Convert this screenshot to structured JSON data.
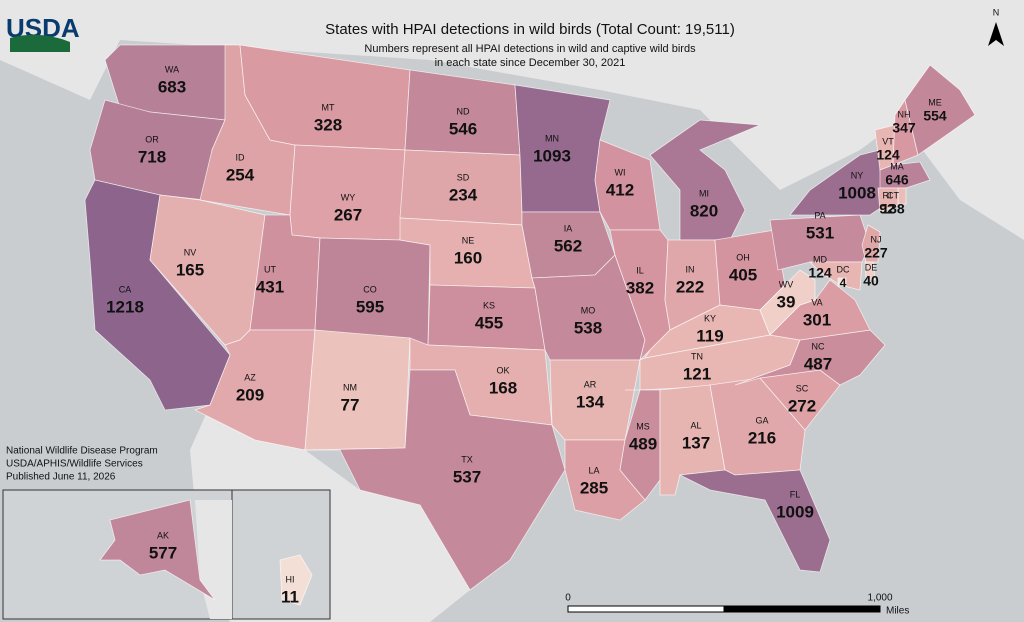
{
  "logo": "USDA",
  "title": "States with HPAI detections in wild birds (Total Count: 19,511)",
  "subtitle": [
    "Numbers represent all HPAI detections in wild and captive wild birds",
    "in each state since December 30, 2021"
  ],
  "north": "N",
  "credits": [
    "National Wildlife Disease Program",
    "USDA/APHIS/Wildlife Services",
    "Published June 11, 2026"
  ],
  "scale_bar": {
    "start": "0",
    "end": "1,000",
    "unit": "Miles"
  },
  "states": [
    {
      "abbr": "WA",
      "count": 683
    },
    {
      "abbr": "OR",
      "count": 718
    },
    {
      "abbr": "CA",
      "count": 1218
    },
    {
      "abbr": "ID",
      "count": 254
    },
    {
      "abbr": "NV",
      "count": 165
    },
    {
      "abbr": "MT",
      "count": 328
    },
    {
      "abbr": "WY",
      "count": 267
    },
    {
      "abbr": "UT",
      "count": 431
    },
    {
      "abbr": "AZ",
      "count": 209
    },
    {
      "abbr": "CO",
      "count": 595
    },
    {
      "abbr": "NM",
      "count": 77
    },
    {
      "abbr": "ND",
      "count": 546
    },
    {
      "abbr": "SD",
      "count": 234
    },
    {
      "abbr": "NE",
      "count": 160
    },
    {
      "abbr": "KS",
      "count": 455
    },
    {
      "abbr": "OK",
      "count": 168
    },
    {
      "abbr": "TX",
      "count": 537
    },
    {
      "abbr": "MN",
      "count": 1093
    },
    {
      "abbr": "IA",
      "count": 562
    },
    {
      "abbr": "MO",
      "count": 538
    },
    {
      "abbr": "AR",
      "count": 134
    },
    {
      "abbr": "LA",
      "count": 285
    },
    {
      "abbr": "WI",
      "count": 412
    },
    {
      "abbr": "IL",
      "count": 382
    },
    {
      "abbr": "MI",
      "count": 820
    },
    {
      "abbr": "IN",
      "count": 222
    },
    {
      "abbr": "OH",
      "count": 405
    },
    {
      "abbr": "KY",
      "count": 119
    },
    {
      "abbr": "TN",
      "count": 121
    },
    {
      "abbr": "MS",
      "count": 489
    },
    {
      "abbr": "AL",
      "count": 137
    },
    {
      "abbr": "GA",
      "count": 216
    },
    {
      "abbr": "FL",
      "count": 1009
    },
    {
      "abbr": "SC",
      "count": 272
    },
    {
      "abbr": "NC",
      "count": 487
    },
    {
      "abbr": "VA",
      "count": 301
    },
    {
      "abbr": "WV",
      "count": 39
    },
    {
      "abbr": "PA",
      "count": 531
    },
    {
      "abbr": "NY",
      "count": 1008
    },
    {
      "abbr": "VT",
      "count": 124
    },
    {
      "abbr": "NH",
      "count": 347
    },
    {
      "abbr": "ME",
      "count": 554
    },
    {
      "abbr": "MA",
      "count": 646
    },
    {
      "abbr": "RI",
      "count": 92
    },
    {
      "abbr": "CT",
      "count": 138
    },
    {
      "abbr": "NJ",
      "count": 227
    },
    {
      "abbr": "DE",
      "count": 40
    },
    {
      "abbr": "MD",
      "count": 124
    },
    {
      "abbr": "DC",
      "count": 4
    },
    {
      "abbr": "AK",
      "count": 577
    },
    {
      "abbr": "HI",
      "count": 11
    }
  ]
}
